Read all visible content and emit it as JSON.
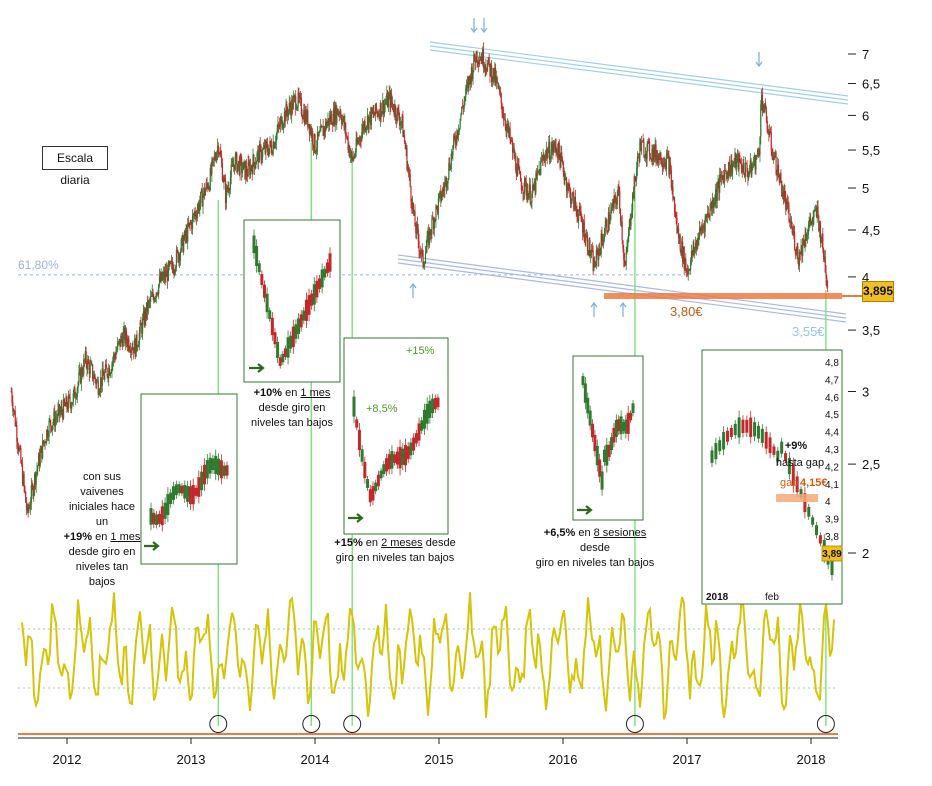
{
  "scale_label": "Escala diaria",
  "colors": {
    "up_candle": "#2f7a2f",
    "down_candle": "#c0282a",
    "fib_line": "#9bb3e0",
    "upper_channel": "#9fd0e8",
    "lower_channel": "#a9b8e8",
    "support": "#ee7a40",
    "oscillator": "#d4c40a",
    "signal_line": "#7ee07e",
    "price_badge": "#f0c020"
  },
  "fib_label": "61,80%",
  "support_label": "3,80€",
  "channel_label": "3,55€",
  "current_price": "3,895",
  "annotations": {
    "a2013": {
      "l1": "con sus vaivenes",
      "l2": "iniciales hace un",
      "l3_bold": "+19%",
      "l3_mid": " en ",
      "l3_under": "1 mes",
      "l4": "desde giro en",
      "l5": "niveles tan bajos"
    },
    "a2014": {
      "l1_bold": "+10%",
      "l1_mid": " en ",
      "l1_under": "1 mes",
      "l2": "desde giro en",
      "l3": "niveles tan bajos"
    },
    "a2014b": {
      "l1_bold": "+15%",
      "l1_mid": " en ",
      "l1_under": "2 meses",
      "l1_end": " desde",
      "l2": "giro en niveles tan bajos",
      "inset_label_1": "+8,5%",
      "inset_label_2": "+15%"
    },
    "a2016": {
      "l1_bold": "+6,5%",
      "l1_mid": " en ",
      "l1_under": "8 sesiones",
      "l1_end": " desde",
      "l2": "giro en niveles tan bajos"
    },
    "a2018": {
      "l1": "+9%",
      "l2": "hasta gap",
      "l3": "gap",
      "l3_val": "4,15€"
    }
  },
  "inset_2018": {
    "y_ticks": [
      "4,8",
      "4,7",
      "4,6",
      "4,5",
      "4,4",
      "4,3",
      "4,2",
      "4,1",
      "4",
      "3,9",
      "3,8"
    ],
    "price_badge": "3,89",
    "x_labels": [
      "2018",
      "feb"
    ]
  },
  "chart_data": {
    "type": "line",
    "title": "",
    "xlabel": "",
    "ylabel": "",
    "log_scale": true,
    "x_ticks": [
      "2012",
      "2013",
      "2014",
      "2015",
      "2016",
      "2017",
      "2018"
    ],
    "y_ticks": [
      {
        "value": 7,
        "label": "7"
      },
      {
        "value": 6.5,
        "label": "6,5"
      },
      {
        "value": 6,
        "label": "6"
      },
      {
        "value": 5.5,
        "label": "5,5"
      },
      {
        "value": 5,
        "label": "5"
      },
      {
        "value": 4.5,
        "label": "4,5"
      },
      {
        "value": 4,
        "label": "4"
      },
      {
        "value": 3.5,
        "label": "3,5"
      },
      {
        "value": 3,
        "label": "3"
      },
      {
        "value": 2.5,
        "label": "2,5"
      },
      {
        "value": 2,
        "label": "2"
      }
    ],
    "ylim": [
      1.9,
      7.3
    ],
    "series": [
      {
        "values": [
          {
            "x": 2011.55,
            "y": 3.0
          },
          {
            "x": 2011.62,
            "y": 2.55
          },
          {
            "x": 2011.68,
            "y": 2.2
          },
          {
            "x": 2011.75,
            "y": 2.45
          },
          {
            "x": 2011.85,
            "y": 2.75
          },
          {
            "x": 2011.95,
            "y": 2.85
          },
          {
            "x": 2012.05,
            "y": 2.95
          },
          {
            "x": 2012.15,
            "y": 3.25
          },
          {
            "x": 2012.25,
            "y": 3.05
          },
          {
            "x": 2012.35,
            "y": 3.2
          },
          {
            "x": 2012.45,
            "y": 3.45
          },
          {
            "x": 2012.55,
            "y": 3.35
          },
          {
            "x": 2012.65,
            "y": 3.7
          },
          {
            "x": 2012.75,
            "y": 3.95
          },
          {
            "x": 2012.85,
            "y": 4.1
          },
          {
            "x": 2012.95,
            "y": 4.4
          },
          {
            "x": 2013.05,
            "y": 4.75
          },
          {
            "x": 2013.15,
            "y": 5.1
          },
          {
            "x": 2013.22,
            "y": 5.6
          },
          {
            "x": 2013.28,
            "y": 4.9
          },
          {
            "x": 2013.35,
            "y": 5.35
          },
          {
            "x": 2013.45,
            "y": 5.2
          },
          {
            "x": 2013.55,
            "y": 5.45
          },
          {
            "x": 2013.65,
            "y": 5.55
          },
          {
            "x": 2013.75,
            "y": 6.0
          },
          {
            "x": 2013.85,
            "y": 6.25
          },
          {
            "x": 2013.95,
            "y": 5.9
          },
          {
            "x": 2014.0,
            "y": 5.55
          },
          {
            "x": 2014.1,
            "y": 5.9
          },
          {
            "x": 2014.2,
            "y": 6.1
          },
          {
            "x": 2014.3,
            "y": 5.35
          },
          {
            "x": 2014.4,
            "y": 5.9
          },
          {
            "x": 2014.5,
            "y": 6.05
          },
          {
            "x": 2014.6,
            "y": 6.25
          },
          {
            "x": 2014.7,
            "y": 5.9
          },
          {
            "x": 2014.8,
            "y": 4.6
          },
          {
            "x": 2014.87,
            "y": 4.15
          },
          {
            "x": 2014.95,
            "y": 4.6
          },
          {
            "x": 2015.05,
            "y": 5.05
          },
          {
            "x": 2015.15,
            "y": 5.8
          },
          {
            "x": 2015.25,
            "y": 6.6
          },
          {
            "x": 2015.3,
            "y": 7.0
          },
          {
            "x": 2015.35,
            "y": 6.95
          },
          {
            "x": 2015.45,
            "y": 6.6
          },
          {
            "x": 2015.55,
            "y": 5.8
          },
          {
            "x": 2015.65,
            "y": 5.1
          },
          {
            "x": 2015.75,
            "y": 4.9
          },
          {
            "x": 2015.85,
            "y": 5.45
          },
          {
            "x": 2015.95,
            "y": 5.55
          },
          {
            "x": 2016.05,
            "y": 4.95
          },
          {
            "x": 2016.15,
            "y": 4.6
          },
          {
            "x": 2016.25,
            "y": 4.1
          },
          {
            "x": 2016.35,
            "y": 4.55
          },
          {
            "x": 2016.45,
            "y": 4.95
          },
          {
            "x": 2016.5,
            "y": 4.05
          },
          {
            "x": 2016.55,
            "y": 4.75
          },
          {
            "x": 2016.62,
            "y": 5.55
          },
          {
            "x": 2016.75,
            "y": 5.45
          },
          {
            "x": 2016.85,
            "y": 5.35
          },
          {
            "x": 2016.92,
            "y": 4.5
          },
          {
            "x": 2017.0,
            "y": 4.05
          },
          {
            "x": 2017.1,
            "y": 4.45
          },
          {
            "x": 2017.2,
            "y": 4.8
          },
          {
            "x": 2017.3,
            "y": 5.2
          },
          {
            "x": 2017.4,
            "y": 5.35
          },
          {
            "x": 2017.5,
            "y": 5.2
          },
          {
            "x": 2017.58,
            "y": 5.45
          },
          {
            "x": 2017.6,
            "y": 6.3
          },
          {
            "x": 2017.68,
            "y": 5.55
          },
          {
            "x": 2017.75,
            "y": 5.1
          },
          {
            "x": 2017.82,
            "y": 4.65
          },
          {
            "x": 2017.9,
            "y": 4.2
          },
          {
            "x": 2017.98,
            "y": 4.55
          },
          {
            "x": 2018.05,
            "y": 4.7
          },
          {
            "x": 2018.1,
            "y": 4.25
          },
          {
            "x": 2018.14,
            "y": 3.89
          }
        ]
      }
    ],
    "signal_dates": [
      2013.22,
      2013.97,
      2014.3,
      2016.58,
      2018.12
    ],
    "fib_level": 4.0,
    "support_level": 3.8
  }
}
